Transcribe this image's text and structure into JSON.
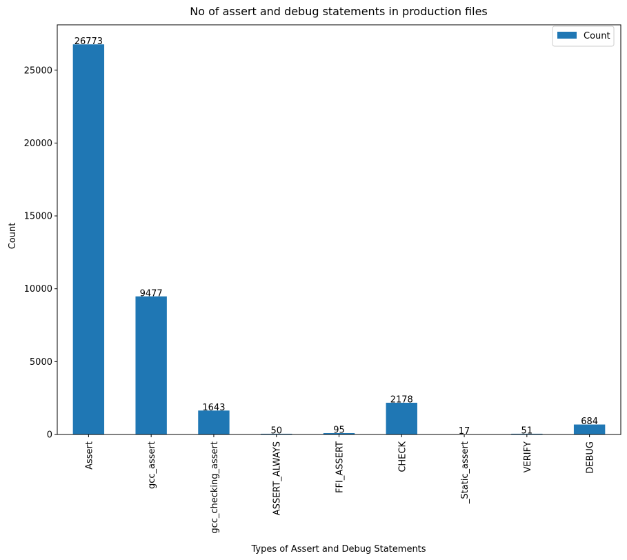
{
  "chart_data": {
    "type": "bar",
    "title": "No of assert and debug statements in production files",
    "xlabel": "Types of Assert and Debug Statements",
    "ylabel": "Count",
    "categories": [
      "Assert",
      "gcc_assert",
      "gcc_checking_assert",
      "ASSERT_ALWAYS",
      "FFI_ASSERT",
      "CHECK",
      "_Static_assert",
      "VERIFY",
      "DEBUG"
    ],
    "series": [
      {
        "name": "Count",
        "values": [
          26773,
          9477,
          1643,
          50,
          95,
          2178,
          17,
          51,
          684
        ]
      }
    ],
    "data_labels": [
      "26773",
      "9477",
      "1643",
      "50",
      "95",
      "2178",
      "17",
      "51",
      "684"
    ],
    "ylim": [
      0,
      28112
    ],
    "yticks": [
      0,
      5000,
      10000,
      15000,
      20000,
      25000
    ],
    "ytick_labels": [
      "0",
      "5000",
      "10000",
      "15000",
      "20000",
      "25000"
    ],
    "grid": false,
    "legend": {
      "position": "top-right",
      "label": "Count"
    },
    "colors": {
      "bar": "#1f77b4",
      "axes": "#000000",
      "background": "#ffffff"
    }
  }
}
